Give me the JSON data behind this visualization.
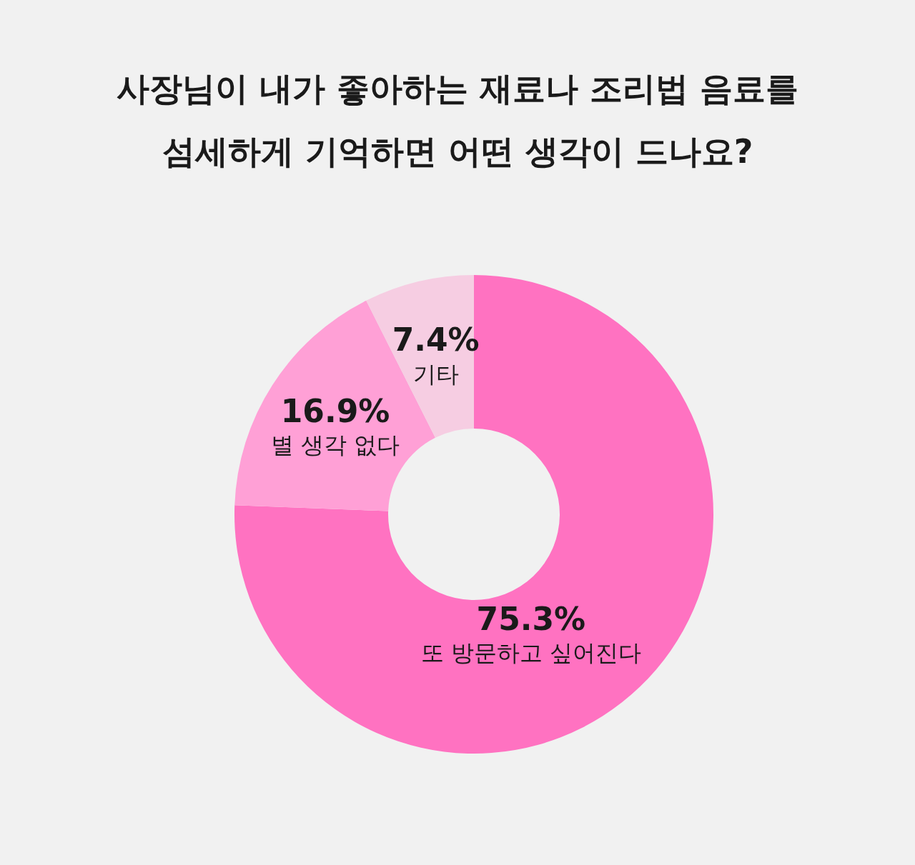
{
  "chart_data": {
    "type": "donut",
    "title": "사장님이 내가 좋아하는 재료나 조리법 음료를\n섬세하게 기억하면 어떤 생각이 드나요?",
    "categories": [
      "또 방문하고 싶어진다",
      "별 생각 없다",
      "기타"
    ],
    "values": [
      75.3,
      16.9,
      7.4
    ],
    "value_labels": [
      "75.3%",
      "16.9%",
      "7.4%"
    ],
    "colors": [
      "#ff72c1",
      "#ffa0d6",
      "#f6cde2"
    ],
    "legend": false
  }
}
